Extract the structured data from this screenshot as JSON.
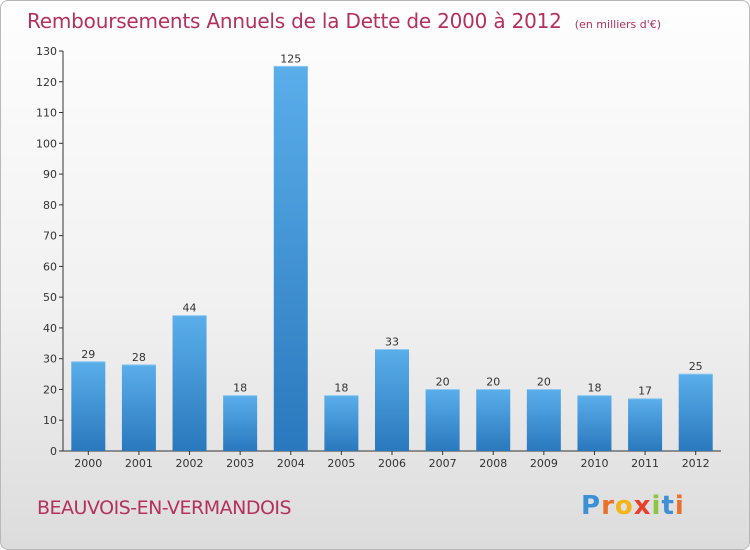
{
  "header": {
    "title": "Remboursements Annuels de la Dette de 2000 à 2012",
    "unit": "(en milliers d'€)"
  },
  "footer": {
    "commune": "BEAUVOIS-EN-VERMANDOIS",
    "logo_letters": [
      "P",
      "r",
      "o",
      "x",
      "i",
      "t",
      "i"
    ],
    "logo_colors": [
      "#3d8fd6",
      "#e8712b",
      "#f2b416",
      "#e8412b",
      "#8cc63f",
      "#3d8fd6",
      "#e8712b"
    ]
  },
  "chart_data": {
    "type": "bar",
    "title": "Remboursements Annuels de la Dette de 2000 à 2012",
    "subtitle": "(en milliers d'€)",
    "categories": [
      "2000",
      "2001",
      "2002",
      "2003",
      "2004",
      "2005",
      "2006",
      "2007",
      "2008",
      "2009",
      "2010",
      "2011",
      "2012"
    ],
    "values": [
      29,
      28,
      44,
      18,
      125,
      18,
      33,
      20,
      20,
      20,
      18,
      17,
      25
    ],
    "ylim": [
      0,
      130
    ],
    "yticks": [
      0,
      10,
      20,
      30,
      40,
      50,
      60,
      70,
      80,
      90,
      100,
      110,
      120,
      130
    ],
    "grid": false,
    "bar_color": "#3d8fd6"
  }
}
